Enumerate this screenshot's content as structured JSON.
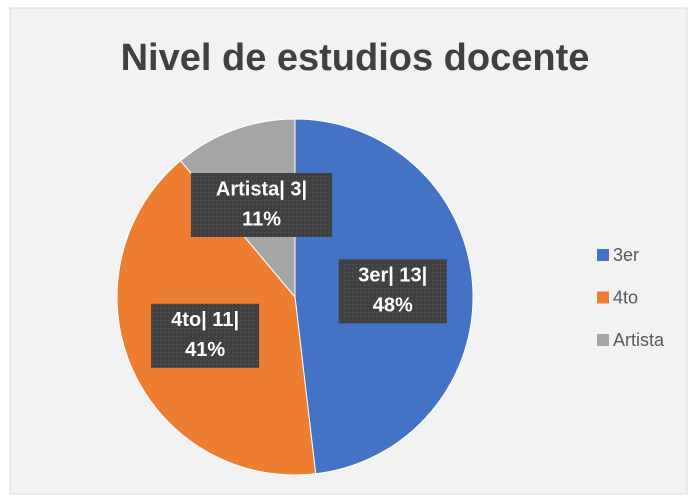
{
  "chart_data": {
    "type": "pie",
    "title": "Nivel de estudios docente",
    "categories": [
      "3er",
      "4to",
      "Artista"
    ],
    "values": [
      13,
      11,
      3
    ],
    "value_labels": [
      [
        "3er| 13|",
        "48%"
      ],
      [
        "4to| 11|",
        "41%"
      ],
      [
        "Artista| 3|",
        "11%"
      ]
    ],
    "colors": [
      "#4472c4",
      "#ed7d31",
      "#a5a5a5"
    ],
    "legend": "right"
  }
}
